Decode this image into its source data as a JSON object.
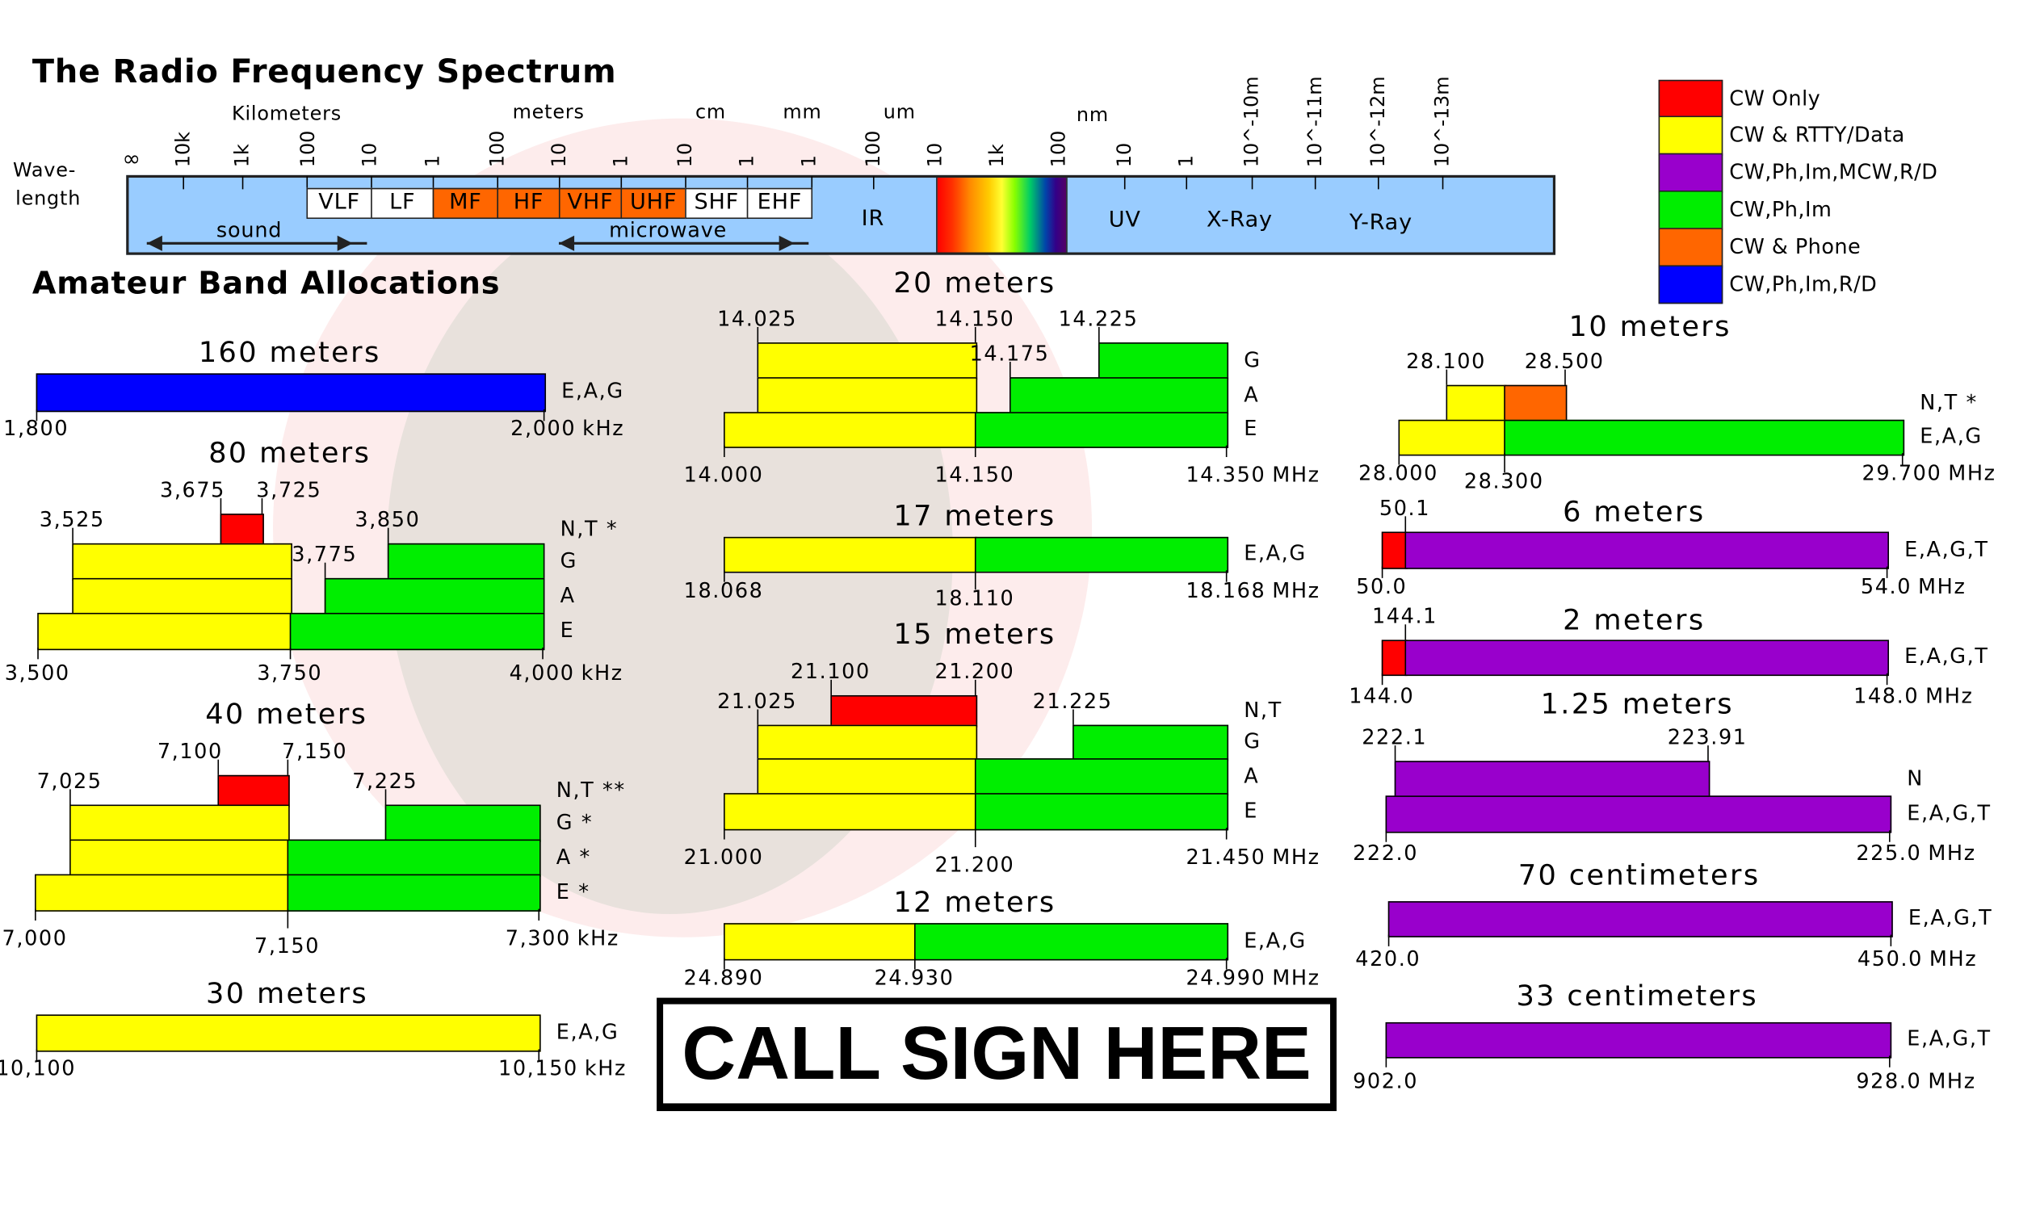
{
  "title": "The Radio Frequency Spectrum",
  "spectrum": {
    "axis_label": [
      "Wave-",
      "length"
    ],
    "unit_labels": [
      "Kilometers",
      "meters",
      "cm",
      "mm",
      "um",
      "nm"
    ],
    "ticks": [
      "∞",
      "10k",
      "1k",
      "100",
      "10",
      "1",
      "100",
      "10",
      "1",
      "10",
      "1",
      "1",
      "100",
      "10",
      "1k",
      "100",
      "10",
      "1",
      "10^-10m",
      "10^-11m",
      "10^-12m",
      "10^-13m"
    ],
    "bands": [
      {
        "label": "VLF",
        "color": "#ffffff"
      },
      {
        "label": "LF",
        "color": "#ffffff"
      },
      {
        "label": "MF",
        "color": "#ff6600"
      },
      {
        "label": "HF",
        "color": "#ff6600"
      },
      {
        "label": "VHF",
        "color": "#ff6600"
      },
      {
        "label": "UHF",
        "color": "#ff6600"
      },
      {
        "label": "SHF",
        "color": "#ffffff"
      },
      {
        "label": "EHF",
        "color": "#ffffff"
      }
    ],
    "sound": "sound",
    "microwave": "microwave",
    "regions": [
      "IR",
      "UV",
      "X-Ray",
      "Y-Ray"
    ],
    "bar_color": "#99ccff"
  },
  "legend": [
    {
      "key": "cw",
      "label": "CW Only",
      "color": "#ff0000"
    },
    {
      "key": "cw_data",
      "label": "CW & RTTY/Data",
      "color": "#ffff00"
    },
    {
      "key": "mcw",
      "label": "CW,Ph,Im,MCW,R/D",
      "color": "#9900cc"
    },
    {
      "key": "cw_ph_im",
      "label": "CW,Ph,Im",
      "color": "#00ee00"
    },
    {
      "key": "cw_phone",
      "label": "CW & Phone",
      "color": "#ff6600"
    },
    {
      "key": "cw_ph_im_rd",
      "label": "CW,Ph,Im,R/D",
      "color": "#0000ff"
    }
  ],
  "section_title": "Amateur Band Allocations",
  "bands": [
    {
      "title": "160 meters",
      "unit": "kHz",
      "rows": [
        {
          "classes": "E,A,G",
          "segments": [
            [
              1800,
              2000,
              "cw_ph_im_rd"
            ]
          ]
        }
      ],
      "top_labels": [],
      "bottom_labels": [
        "1,800",
        "2,000"
      ]
    },
    {
      "title": "80 meters",
      "unit": "kHz",
      "rows": [
        {
          "classes": "N,T *",
          "segments": [
            [
              3675,
              3725,
              "cw"
            ]
          ]
        },
        {
          "classes": "G",
          "segments": [
            [
              3525,
              3750,
              "cw_data"
            ],
            [
              3850,
              4000,
              "cw_ph_im"
            ]
          ]
        },
        {
          "classes": "A",
          "segments": [
            [
              3525,
              3750,
              "cw_data"
            ],
            [
              3775,
              4000,
              "cw_ph_im"
            ]
          ]
        },
        {
          "classes": "E",
          "segments": [
            [
              3500,
              3750,
              "cw_data"
            ],
            [
              3750,
              4000,
              "cw_ph_im"
            ]
          ]
        }
      ],
      "top_labels": [
        "3,525",
        "3,675",
        "3,725",
        "3,850",
        "3,775"
      ],
      "bottom_labels": [
        "3,500",
        "3,750",
        "4,000"
      ]
    },
    {
      "title": "40 meters",
      "unit": "kHz",
      "rows": [
        {
          "classes": "N,T **",
          "segments": [
            [
              7100,
              7150,
              "cw"
            ]
          ]
        },
        {
          "classes": "G *",
          "segments": [
            [
              7025,
              7150,
              "cw_data"
            ],
            [
              7225,
              7300,
              "cw_ph_im"
            ]
          ]
        },
        {
          "classes": "A *",
          "segments": [
            [
              7025,
              7150,
              "cw_data"
            ],
            [
              7150,
              7300,
              "cw_ph_im"
            ]
          ]
        },
        {
          "classes": "E *",
          "segments": [
            [
              7000,
              7150,
              "cw_data"
            ],
            [
              7150,
              7300,
              "cw_ph_im"
            ]
          ]
        }
      ],
      "top_labels": [
        "7,025",
        "7,100",
        "7,150",
        "7,225"
      ],
      "bottom_labels": [
        "7,000",
        "7,150",
        "7,300"
      ]
    },
    {
      "title": "30 meters",
      "unit": "kHz",
      "rows": [
        {
          "classes": "E,A,G",
          "segments": [
            [
              10100,
              10150,
              "cw_data"
            ]
          ]
        }
      ],
      "top_labels": [],
      "bottom_labels": [
        "10,100",
        "10,150"
      ]
    },
    {
      "title": "20 meters",
      "unit": "MHz",
      "rows": [
        {
          "classes": "G",
          "segments": [
            [
              14.025,
              14.15,
              "cw_data"
            ],
            [
              14.225,
              14.35,
              "cw_ph_im"
            ]
          ]
        },
        {
          "classes": "A",
          "segments": [
            [
              14.025,
              14.15,
              "cw_data"
            ],
            [
              14.175,
              14.35,
              "cw_ph_im"
            ]
          ]
        },
        {
          "classes": "E",
          "segments": [
            [
              14.0,
              14.15,
              "cw_data"
            ],
            [
              14.15,
              14.35,
              "cw_ph_im"
            ]
          ]
        }
      ],
      "top_labels": [
        "14.025",
        "14.150",
        "14.225",
        "14.175"
      ],
      "bottom_labels": [
        "14.000",
        "14.150",
        "14.350"
      ]
    },
    {
      "title": "17 meters",
      "unit": "MHz",
      "rows": [
        {
          "classes": "E,A,G",
          "segments": [
            [
              18.068,
              18.11,
              "cw_data"
            ],
            [
              18.11,
              18.168,
              "cw_ph_im"
            ]
          ]
        }
      ],
      "top_labels": [],
      "bottom_labels": [
        "18.068",
        "18.110",
        "18.168"
      ]
    },
    {
      "title": "15 meters",
      "unit": "MHz",
      "rows": [
        {
          "classes": "N,T",
          "segments": [
            [
              21.1,
              21.2,
              "cw"
            ]
          ]
        },
        {
          "classes": "G",
          "segments": [
            [
              21.025,
              21.2,
              "cw_data"
            ],
            [
              21.225,
              21.45,
              "cw_ph_im"
            ]
          ]
        },
        {
          "classes": "A",
          "segments": [
            [
              21.025,
              21.2,
              "cw_data"
            ],
            [
              21.2,
              21.45,
              "cw_ph_im"
            ]
          ]
        },
        {
          "classes": "E",
          "segments": [
            [
              21.0,
              21.2,
              "cw_data"
            ],
            [
              21.2,
              21.45,
              "cw_ph_im"
            ]
          ]
        }
      ],
      "top_labels": [
        "21.025",
        "21.100",
        "21.200",
        "21.225"
      ],
      "bottom_labels": [
        "21.000",
        "21.200",
        "21.450"
      ]
    },
    {
      "title": "12 meters",
      "unit": "MHz",
      "rows": [
        {
          "classes": "E,A,G",
          "segments": [
            [
              24.89,
              24.93,
              "cw_data"
            ],
            [
              24.93,
              24.99,
              "cw_ph_im"
            ]
          ]
        }
      ],
      "top_labels": [],
      "bottom_labels": [
        "24.890",
        "24.930",
        "24.990"
      ]
    },
    {
      "title": "10 meters",
      "unit": "MHz",
      "rows": [
        {
          "classes": "N,T *",
          "segments": [
            [
              28.1,
              28.3,
              "cw_data"
            ],
            [
              28.3,
              28.5,
              "cw_phone"
            ]
          ]
        },
        {
          "classes": "E,A,G",
          "segments": [
            [
              28.0,
              28.3,
              "cw_data"
            ],
            [
              28.3,
              29.7,
              "cw_ph_im"
            ]
          ]
        }
      ],
      "top_labels": [
        "28.100",
        "28.500"
      ],
      "bottom_labels": [
        "28.000",
        "28.300",
        "29.700"
      ]
    },
    {
      "title": "6 meters",
      "unit": "MHz",
      "rows": [
        {
          "classes": "E,A,G,T",
          "segments": [
            [
              50.0,
              50.1,
              "cw"
            ],
            [
              50.1,
              54.0,
              "mcw"
            ]
          ]
        }
      ],
      "top_labels": [
        "50.1"
      ],
      "bottom_labels": [
        "50.0",
        "54.0"
      ]
    },
    {
      "title": "2 meters",
      "unit": "MHz",
      "rows": [
        {
          "classes": "E,A,G,T",
          "segments": [
            [
              144.0,
              144.1,
              "cw"
            ],
            [
              144.1,
              148.0,
              "mcw"
            ]
          ]
        }
      ],
      "top_labels": [
        "144.1"
      ],
      "bottom_labels": [
        "144.0",
        "148.0"
      ]
    },
    {
      "title": "1.25 meters",
      "unit": "MHz",
      "rows": [
        {
          "classes": "N",
          "segments": [
            [
              222.1,
              223.91,
              "mcw"
            ]
          ]
        },
        {
          "classes": "E,A,G,T",
          "segments": [
            [
              222.0,
              225.0,
              "mcw"
            ]
          ]
        }
      ],
      "top_labels": [
        "222.1",
        "223.91"
      ],
      "bottom_labels": [
        "222.0",
        "225.0"
      ]
    },
    {
      "title": "70 centimeters",
      "unit": "MHz",
      "rows": [
        {
          "classes": "E,A,G,T",
          "segments": [
            [
              420.0,
              450.0,
              "mcw"
            ]
          ]
        }
      ],
      "top_labels": [],
      "bottom_labels": [
        "420.0",
        "450.0"
      ]
    },
    {
      "title": "33 centimeters",
      "unit": "MHz",
      "rows": [
        {
          "classes": "E,A,G,T",
          "segments": [
            [
              902.0,
              928.0,
              "mcw"
            ]
          ]
        }
      ],
      "top_labels": [],
      "bottom_labels": [
        "902.0",
        "928.0"
      ]
    }
  ],
  "call_sign": "CALL SIGN HERE"
}
